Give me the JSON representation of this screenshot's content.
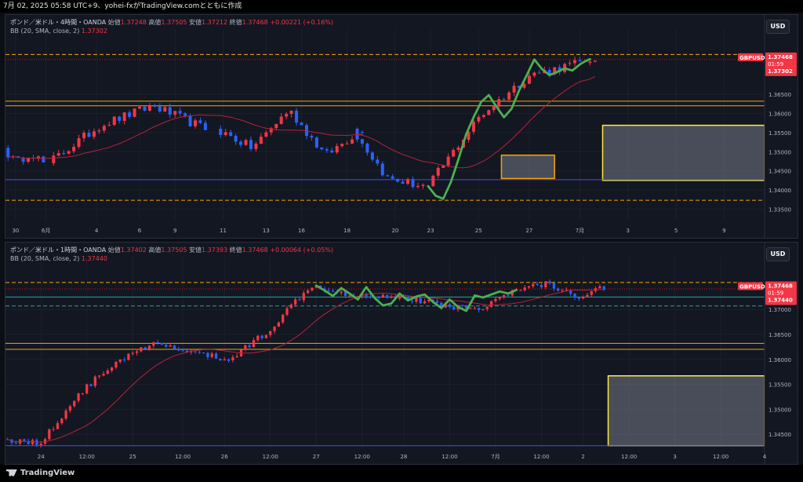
{
  "header": {
    "title": "7月 02, 2025 05:58 UTC+9、yohei-fxがTradingView.comとともに作成"
  },
  "colors": {
    "up": "#f23645",
    "down": "#2962ff",
    "bb": "#b2243a",
    "orange": "#f7a600",
    "yellow": "#ffeb3b",
    "blue": "#3f51f5",
    "teal": "#26a69a",
    "green": "#4caf50",
    "axis_bg": "#131722",
    "price_tag": "#f23645"
  },
  "footer": {
    "brand": "TradingView"
  },
  "chart_data": [
    {
      "type": "candlestick",
      "title": "ポンド／米ドル・4時間・OANDA",
      "ohlc": {
        "open_label": "始値",
        "open": "1.37248",
        "high_label": "高値",
        "high": "1.37505",
        "low_label": "安値",
        "low": "1.37212",
        "close_label": "終値",
        "close": "1.37468",
        "change": "+0.00221 (+0.16%)"
      },
      "indicator": {
        "label": "BB (20, SMA, close, 2)",
        "value": "1.37302"
      },
      "currency": "USD",
      "symbol": "GBPUSD",
      "price_tag": {
        "price": "1.37468",
        "countdown": "01:59",
        "bb": "1.37302"
      },
      "y_ticks": [
        "1.36500",
        "1.36000",
        "1.35500",
        "1.35000",
        "1.34500",
        "1.34000",
        "1.33500"
      ],
      "ylim": [
        1.332,
        1.38
      ],
      "x_ticks": [
        "30",
        "6月",
        "4",
        "6",
        "9",
        "11",
        "13",
        "16",
        "18",
        "20",
        "23",
        "25",
        "27",
        "7月",
        "3",
        "5",
        "9"
      ],
      "x_tick_index": [
        1.5,
        7.5,
        17.5,
        26,
        33,
        42.5,
        51,
        58,
        67,
        76.5,
        83.5,
        93,
        103,
        113,
        122.5,
        132,
        141.5
      ],
      "n_slots": 150,
      "levels": [
        {
          "price": 1.3754,
          "color": "orange",
          "style": "dashed"
        },
        {
          "price": 1.3741,
          "color": "red",
          "style": "dotted"
        },
        {
          "price": 1.3632,
          "color": "orange",
          "style": "solid"
        },
        {
          "price": 1.362,
          "color": "orange",
          "style": "solid"
        },
        {
          "price": 1.3427,
          "color": "blue",
          "style": "solid"
        },
        {
          "price": 1.3373,
          "color": "orange",
          "style": "dashed"
        }
      ],
      "boxes": [
        {
          "start": 97.5,
          "end": 108,
          "top": 1.3491,
          "bottom": 1.343,
          "border": "orange"
        },
        {
          "start": 117.5,
          "end": 151,
          "top": 1.3569,
          "bottom": 1.3425,
          "border": "yellow"
        }
      ],
      "waves": [
        {
          "x": [
            83,
            84.5,
            86,
            87.5,
            89,
            90.5,
            92,
            93.5,
            95,
            96.5,
            98,
            99.5,
            101,
            102.5,
            104,
            105.5,
            107,
            108.5,
            110,
            111.5,
            113,
            114,
            115
          ],
          "y": [
            1.341,
            1.3385,
            1.3377,
            1.342,
            1.348,
            1.3545,
            1.359,
            1.363,
            1.3648,
            1.3618,
            1.359,
            1.3612,
            1.366,
            1.37,
            1.3741,
            1.3716,
            1.37,
            1.3708,
            1.3718,
            1.3712,
            1.3728,
            1.3736,
            1.3742
          ]
        }
      ],
      "candles": {
        "sessions": [
          {
            "start": 0,
            "n": 8,
            "open": 1.351,
            "points": [
              1.351,
              1.347,
              1.35,
              1.347
            ]
          },
          {
            "start": 9,
            "n": 31,
            "open": 1.347,
            "points": [
              1.347,
              1.357,
              1.362,
              1.356
            ]
          },
          {
            "start": 42,
            "n": 29,
            "open": 1.356,
            "points": [
              1.356,
              1.351,
              1.361,
              1.349,
              1.356
            ]
          },
          {
            "start": 69,
            "n": 14,
            "open": 1.356,
            "points": [
              1.356,
              1.343,
              1.341
            ]
          },
          {
            "start": 84,
            "n": 30,
            "open": 1.341,
            "points": [
              1.341,
              1.359,
              1.37,
              1.3732
            ]
          },
          {
            "start": 115,
            "n": 2,
            "open": 1.3732,
            "points": [
              1.3732,
              1.3746
            ]
          }
        ]
      }
    },
    {
      "type": "candlestick",
      "title": "ポンド／米ドル・1時間・OANDA",
      "ohlc": {
        "open_label": "始値",
        "open": "1.37402",
        "high_label": "高値",
        "high": "1.37505",
        "low_label": "安値",
        "low": "1.37393",
        "close_label": "終値",
        "close": "1.37468",
        "change": "+0.00064 (+0.05%)"
      },
      "indicator": {
        "label": "BB (20, SMA, close, 2)",
        "value": "1.37440"
      },
      "currency": "USD",
      "symbol": "GBPUSD",
      "price_tag": {
        "price": "1.37468",
        "countdown": "01:59",
        "bb": "1.37440"
      },
      "y_ticks": [
        "1.37000",
        "1.36500",
        "1.36000",
        "1.35500",
        "1.35000",
        "1.34500"
      ],
      "ylim": [
        1.3425,
        1.379
      ],
      "x_ticks": [
        "24",
        "12:00",
        "25",
        "12:00",
        "26",
        "12:00",
        "27",
        "12:00",
        "28",
        "12:00",
        "7月",
        "12:00",
        "2",
        "12:00",
        "3",
        "12:00",
        "4"
      ],
      "x_tick_index": [
        8,
        19,
        30,
        42,
        52,
        63,
        74,
        85,
        95,
        106,
        117,
        128,
        138,
        149,
        160,
        171,
        181.5
      ],
      "n_slots": 182,
      "levels": [
        {
          "price": 1.3754,
          "color": "orange",
          "style": "dashed"
        },
        {
          "price": 1.3741,
          "color": "red",
          "style": "dotted"
        },
        {
          "price": 1.3725,
          "color": "teal",
          "style": "solid"
        },
        {
          "price": 1.3707,
          "color": "teal",
          "style": "dashed"
        },
        {
          "price": 1.3632,
          "color": "orange",
          "style": "solid"
        },
        {
          "price": 1.362,
          "color": "orange",
          "style": "solid"
        },
        {
          "price": 1.3427,
          "color": "blue",
          "style": "solid"
        }
      ],
      "boxes": [
        {
          "start": 144,
          "end": 183,
          "top": 1.3567,
          "bottom": 1.3427,
          "border": "yellow"
        }
      ],
      "waves": [
        {
          "x": [
            74,
            76,
            78,
            80,
            82,
            84,
            86,
            88,
            90,
            92,
            94,
            96,
            98,
            100,
            102,
            104,
            106,
            108,
            110,
            112,
            114,
            116,
            118,
            120,
            122
          ],
          "y": [
            1.3748,
            1.3738,
            1.3727,
            1.3743,
            1.3732,
            1.372,
            1.3745,
            1.3723,
            1.3708,
            1.3712,
            1.3732,
            1.3718,
            1.3726,
            1.373,
            1.3715,
            1.3703,
            1.372,
            1.3705,
            1.3697,
            1.3728,
            1.3724,
            1.373,
            1.3736,
            1.3732,
            1.3739
          ]
        }
      ],
      "candles": {
        "sessions": [
          {
            "start": 0,
            "n": 54,
            "open": 1.344,
            "points": [
              1.344,
              1.3432,
              1.353,
              1.3595,
              1.363,
              1.3615,
              1.3598
            ]
          },
          {
            "start": 54,
            "n": 69,
            "open": 1.3598,
            "points": [
              1.3598,
              1.366,
              1.375,
              1.373,
              1.3727,
              1.3712,
              1.37,
              1.3738
            ]
          },
          {
            "start": 123,
            "n": 21,
            "open": 1.3738,
            "points": [
              1.3738,
              1.3753,
              1.3725,
              1.3746
            ]
          }
        ]
      }
    }
  ]
}
